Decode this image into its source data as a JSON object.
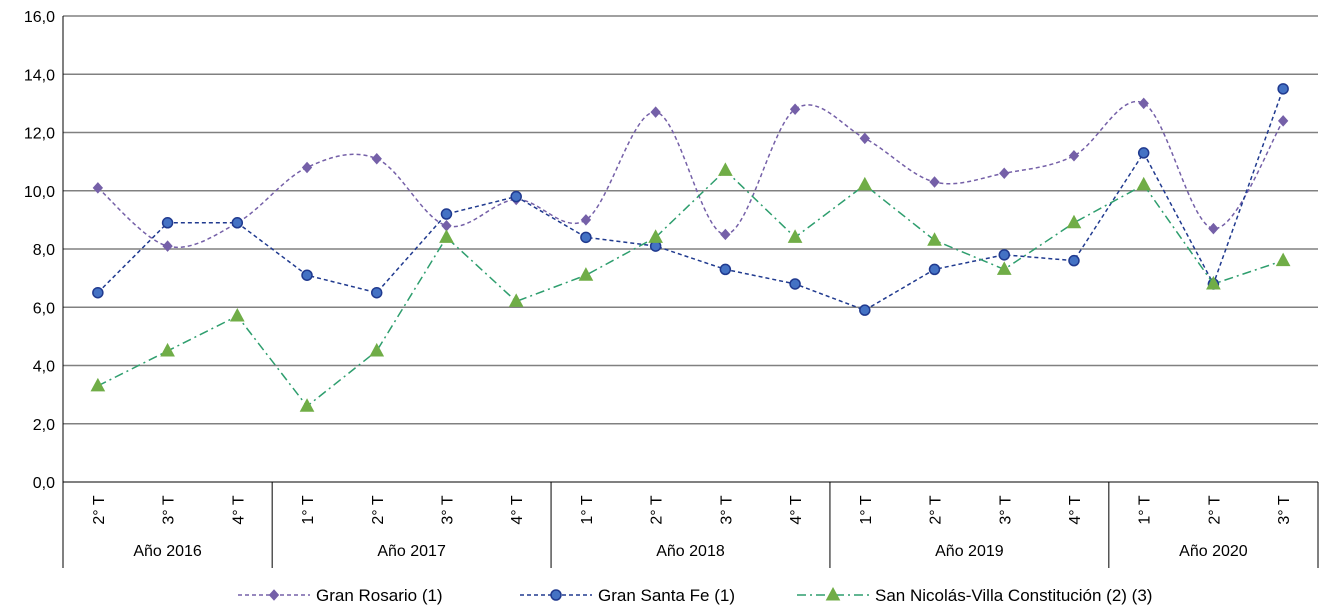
{
  "chart_data": {
    "type": "line",
    "y_ticks": [
      "0,0",
      "2,0",
      "4,0",
      "6,0",
      "8,0",
      "10,0",
      "12,0",
      "14,0",
      "16,0"
    ],
    "ylim": [
      0,
      16
    ],
    "grid": true,
    "legend_position": "bottom",
    "categories": [
      "2° T",
      "3° T",
      "4° T",
      "1° T",
      "2° T",
      "3° T",
      "4° T",
      "1° T",
      "2° T",
      "3° T",
      "4° T",
      "1° T",
      "2° T",
      "3° T",
      "4° T",
      "1° T",
      "2° T",
      "3° T"
    ],
    "groups": [
      {
        "label": "Año 2016",
        "count": 3
      },
      {
        "label": "Año 2017",
        "count": 4
      },
      {
        "label": "Año 2018",
        "count": 4
      },
      {
        "label": "Año 2019",
        "count": 4
      },
      {
        "label": "Año 2020",
        "count": 3
      }
    ],
    "series": [
      {
        "name": "Gran Rosario  (1)",
        "color": "#7560a8",
        "marker": "diamond",
        "line": "dashed",
        "smooth": true,
        "values": [
          10.1,
          8.1,
          8.9,
          10.8,
          11.1,
          8.8,
          9.7,
          9.0,
          12.7,
          8.5,
          12.8,
          11.8,
          10.3,
          10.6,
          11.2,
          13.0,
          8.7,
          12.4
        ]
      },
      {
        "name": "Gran Santa Fe (1)",
        "color": "#203a8f",
        "fill": "#4472c4",
        "marker": "circle",
        "line": "dashed",
        "smooth": false,
        "values": [
          6.5,
          8.9,
          8.9,
          7.1,
          6.5,
          9.2,
          9.8,
          8.4,
          8.1,
          7.3,
          6.8,
          5.9,
          7.3,
          7.8,
          7.6,
          11.3,
          6.8,
          13.5
        ]
      },
      {
        "name": "San Nicolás-Villa Constitución (2) (3)",
        "color": "#2e9e6e",
        "fill": "#70ad47",
        "marker": "triangle",
        "line": "dashdot",
        "smooth": false,
        "values": [
          3.3,
          4.5,
          5.7,
          2.6,
          4.5,
          8.4,
          6.2,
          7.1,
          8.4,
          10.7,
          8.4,
          10.2,
          8.3,
          7.3,
          8.9,
          10.2,
          6.8,
          7.6
        ]
      }
    ]
  }
}
